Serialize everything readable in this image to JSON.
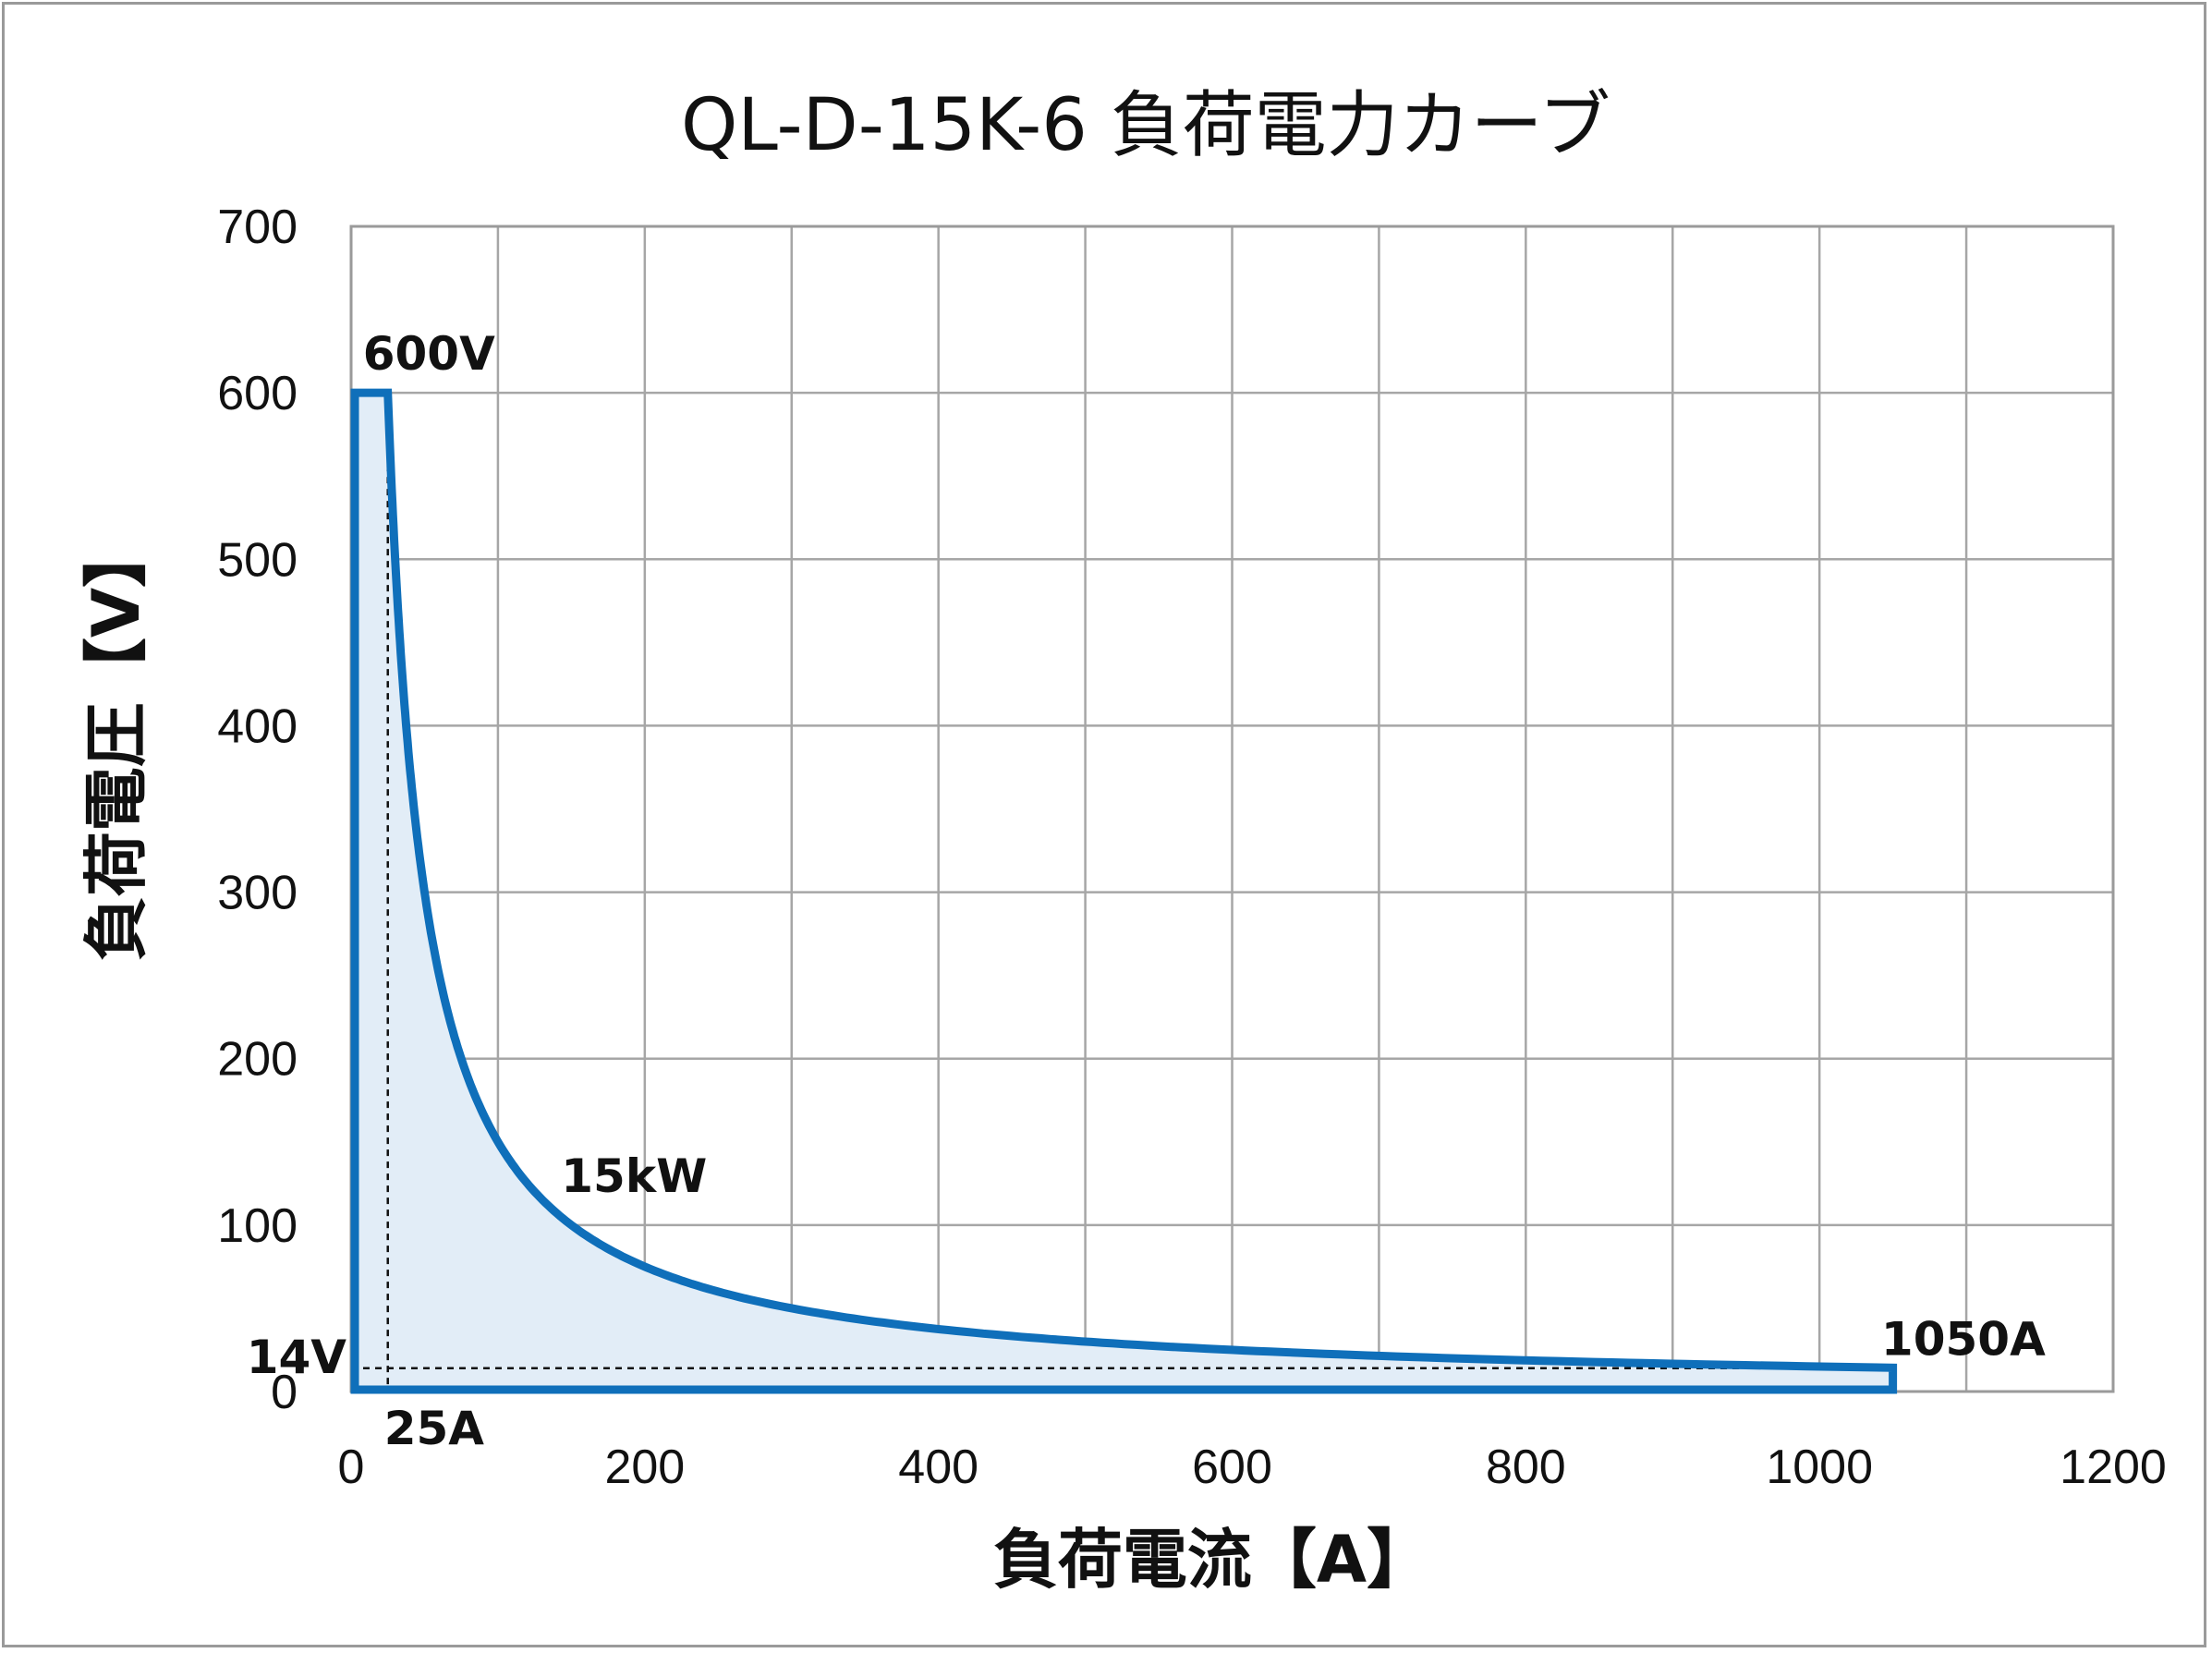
{
  "chart_data": {
    "type": "area",
    "title": "QL-D-15K-6  負荷電力カーブ",
    "xlabel": "負荷電流【A】",
    "ylabel": "負荷電圧【V】",
    "xlim": [
      0,
      1200
    ],
    "ylim": [
      0,
      700
    ],
    "xticks": [
      0,
      200,
      400,
      600,
      800,
      1000,
      1200
    ],
    "yticks": [
      0,
      100,
      200,
      300,
      400,
      500,
      600,
      700
    ],
    "grid": true,
    "series": [
      {
        "name": "15kW",
        "color": "#0f6fba",
        "fill": "#e2edf7",
        "max_voltage": 600,
        "max_current": 1050,
        "power_w": 15000,
        "min_voltage": 14,
        "x": [
          0,
          25,
          50,
          75,
          100,
          150,
          200,
          300,
          400,
          500,
          600,
          700,
          800,
          900,
          1000,
          1050,
          1050,
          0
        ],
        "y": [
          600,
          600,
          300,
          200,
          150,
          100,
          75,
          50,
          37.5,
          30,
          25,
          21.4,
          18.75,
          16.7,
          15,
          14.3,
          0,
          0
        ]
      }
    ],
    "annotations": {
      "max_voltage": "600V",
      "power": "15kW",
      "max_current": "1050A",
      "min_voltage": "14V",
      "min_current": "25A"
    },
    "reference_lines": {
      "vertical_current": 25,
      "horizontal_voltage": 14
    }
  }
}
